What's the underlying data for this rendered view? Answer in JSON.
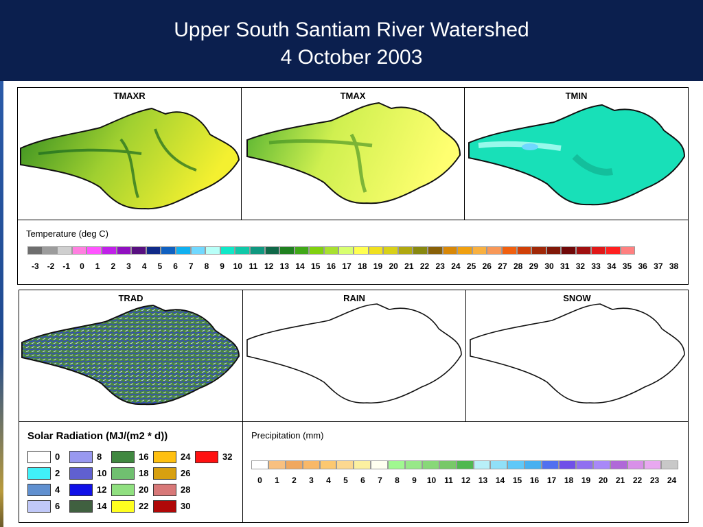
{
  "header": {
    "title_line1": "Upper South Santiam River Watershed",
    "title_line2": "4 October 2003",
    "bg_color": "#0b1f4e"
  },
  "maps": {
    "tmaxr": "TMAXR",
    "tmax": "TMAX",
    "tmin": "TMIN",
    "trad": "TRAD",
    "rain": "RAIN",
    "snow": "SNOW"
  },
  "temperature_legend": {
    "title": "Temperature (deg C)",
    "labels": [
      "-3",
      "-2",
      "-1",
      "0",
      "1",
      "2",
      "3",
      "4",
      "5",
      "6",
      "7",
      "8",
      "9",
      "10",
      "11",
      "12",
      "13",
      "14",
      "15",
      "16",
      "17",
      "18",
      "19",
      "20",
      "21",
      "22",
      "23",
      "24",
      "25",
      "26",
      "27",
      "28",
      "29",
      "30",
      "31",
      "32",
      "33",
      "34",
      "35",
      "36",
      "37",
      "38"
    ],
    "colors": [
      "#6e6e6e",
      "#9c9c9c",
      "#cfcfcf",
      "#ff7fe0",
      "#ff55ff",
      "#c020e8",
      "#9010c0",
      "#581080",
      "#102a88",
      "#1060c0",
      "#10b0f0",
      "#70d8ff",
      "#b8fff8",
      "#10e8c8",
      "#10c8a8",
      "#109880",
      "#106848",
      "#208020",
      "#40a818",
      "#80d010",
      "#a8e030",
      "#d8ff70",
      "#ffff50",
      "#f0e020",
      "#d8d018",
      "#b0a810",
      "#888810",
      "#886008",
      "#d88808",
      "#f0a010",
      "#f8b040",
      "#f89858",
      "#f06010",
      "#d04008",
      "#a02808",
      "#801808",
      "#700808",
      "#a01010",
      "#e01818",
      "#ff2020",
      "#ff8080"
    ]
  },
  "solar_legend": {
    "title": "Solar Radiation (MJ/(m2 * d))",
    "items": [
      {
        "label": "0",
        "color": "#ffffff"
      },
      {
        "label": "2",
        "color": "#40f0f8"
      },
      {
        "label": "4",
        "color": "#6090d0"
      },
      {
        "label": "6",
        "color": "#c0c8f8"
      },
      {
        "label": "8",
        "color": "#9898f0"
      },
      {
        "label": "10",
        "color": "#6060d0"
      },
      {
        "label": "12",
        "color": "#1010e8"
      },
      {
        "label": "14",
        "color": "#406040"
      },
      {
        "label": "16",
        "color": "#408840"
      },
      {
        "label": "18",
        "color": "#70c070"
      },
      {
        "label": "20",
        "color": "#90e080"
      },
      {
        "label": "22",
        "color": "#ffff20"
      },
      {
        "label": "24",
        "color": "#ffc010"
      },
      {
        "label": "26",
        "color": "#d8a010"
      },
      {
        "label": "28",
        "color": "#d87878"
      },
      {
        "label": "30",
        "color": "#b00808"
      },
      {
        "label": "32",
        "color": "#ff1010"
      }
    ]
  },
  "precip_legend": {
    "title": "Precipitation (mm)",
    "labels": [
      "0",
      "1",
      "2",
      "3",
      "4",
      "5",
      "6",
      "7",
      "8",
      "9",
      "10",
      "11",
      "12",
      "13",
      "14",
      "15",
      "16",
      "17",
      "18",
      "19",
      "20",
      "21",
      "22",
      "23",
      "24"
    ],
    "colors": [
      "#ffffff",
      "#f8c080",
      "#f0a860",
      "#f8b868",
      "#fcc870",
      "#fcd890",
      "#fcf0a0",
      "#fffff0",
      "#a0f890",
      "#98e888",
      "#88d878",
      "#78c868",
      "#50b850",
      "#b8f0f8",
      "#90e0f8",
      "#60c8f8",
      "#48b0f0",
      "#5070f0",
      "#7050e8",
      "#9070f0",
      "#a888f8",
      "#b068d8",
      "#d890e8",
      "#e8a8f0",
      "#c8c8c8"
    ]
  }
}
